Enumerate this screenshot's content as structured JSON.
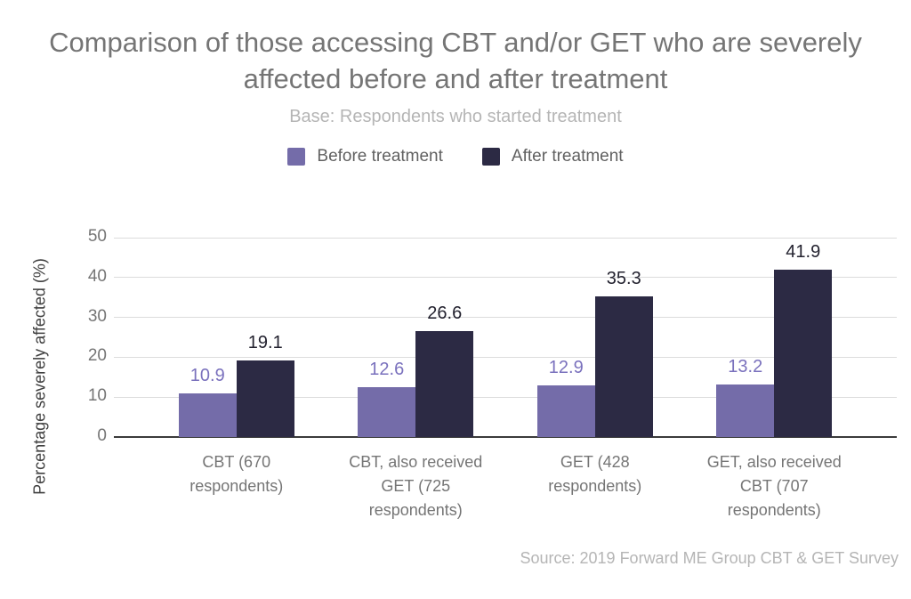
{
  "header": {
    "title": "Comparison of those accessing CBT and/or GET who are severely affected before and after treatment",
    "subtitle": "Base: Respondents who started treatment"
  },
  "footer": {
    "source": "Source: 2019 Forward ME Group CBT & GET Survey"
  },
  "colors": {
    "before_bar": "#746ca9",
    "after_bar": "#2c2a44",
    "before_value_label": "#7a71bd",
    "after_value_label": "#23222f",
    "title_text": "#757575",
    "muted_text": "#b5b5b5",
    "axis_text": "#757575",
    "gridline": "#dcdcdc",
    "baseline": "#3b3b3b"
  },
  "chart_data": {
    "type": "bar",
    "title": "Comparison of those accessing CBT and/or GET who are severely affected before and after treatment",
    "subtitle": "Base: Respondents who started treatment",
    "categories": [
      "CBT (670 respondents)",
      "CBT, also received GET (725 respondents)",
      "GET (428 respondents)",
      "GET, also received CBT (707 respondents)"
    ],
    "series": [
      {
        "name": "Before treatment",
        "color": "#746ca9",
        "label_color": "#7a71bd",
        "values": [
          10.9,
          12.6,
          12.9,
          13.2
        ]
      },
      {
        "name": "After treatment",
        "color": "#2c2a44",
        "label_color": "#23222f",
        "values": [
          19.1,
          26.6,
          35.3,
          41.9
        ]
      }
    ],
    "ylabel": "Percentage severely affected (%)",
    "ylim": [
      0,
      50
    ],
    "yticks": [
      0,
      10,
      20,
      30,
      40,
      50
    ],
    "grid": true,
    "legend_position": "top",
    "source": "Source: 2019 Forward ME Group CBT & GET Survey"
  }
}
